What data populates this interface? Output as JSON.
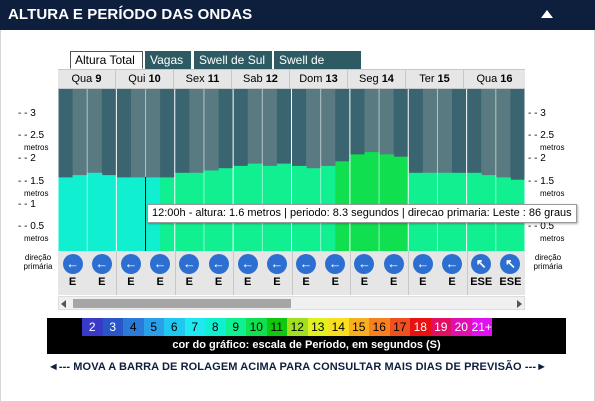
{
  "header": {
    "title": "ALTURA E PERÍODO DAS ONDAS"
  },
  "tabs": [
    {
      "label": "Altura Total",
      "active": true
    },
    {
      "label": "Vagas",
      "active": false
    },
    {
      "label": "Swell de Sul",
      "active": false
    },
    {
      "label": "Swell de Norte",
      "active": false
    }
  ],
  "days": [
    {
      "name": "Qua",
      "num": "9"
    },
    {
      "name": "Qui",
      "num": "10"
    },
    {
      "name": "Sex",
      "num": "11"
    },
    {
      "name": "Sab",
      "num": "12"
    },
    {
      "name": "Dom",
      "num": "13"
    },
    {
      "name": "Seg",
      "num": "14"
    },
    {
      "name": "Ter",
      "num": "15"
    },
    {
      "name": "Qua",
      "num": "16"
    }
  ],
  "axis": {
    "unit": "metros",
    "ticks": [
      "3",
      "2.5",
      "2",
      "1.5",
      "1",
      "0.5"
    ]
  },
  "chart_data": {
    "type": "bar",
    "ylabel": "metros",
    "ylim": [
      0,
      3.5
    ],
    "x": [
      "Qua 9 00h",
      "Qua 9 06h",
      "Qua 9 12h",
      "Qua 9 18h",
      "Qui 10 00h",
      "Qui 10 06h",
      "Qui 10 12h",
      "Qui 10 18h",
      "Sex 11 00h",
      "Sex 11 06h",
      "Sex 11 12h",
      "Sex 11 18h",
      "Sab 12 00h",
      "Sab 12 06h",
      "Sab 12 12h",
      "Sab 12 18h",
      "Dom 13 00h",
      "Dom 13 06h",
      "Dom 13 12h",
      "Dom 13 18h",
      "Seg 14 00h",
      "Seg 14 06h",
      "Seg 14 12h",
      "Seg 14 18h",
      "Ter 15 00h",
      "Ter 15 06h",
      "Ter 15 12h",
      "Ter 15 18h",
      "Qua 16 00h",
      "Qua 16 06h",
      "Qua 16 12h",
      "Qua 16 18h"
    ],
    "values": [
      1.6,
      1.65,
      1.7,
      1.65,
      1.6,
      1.6,
      1.6,
      1.6,
      1.7,
      1.7,
      1.75,
      1.8,
      1.85,
      1.9,
      1.85,
      1.9,
      1.85,
      1.8,
      1.85,
      1.95,
      2.1,
      2.15,
      2.1,
      2.05,
      1.7,
      1.7,
      1.7,
      1.7,
      1.7,
      1.65,
      1.6,
      1.55
    ],
    "periods": [
      8,
      8,
      8.3,
      8,
      7.5,
      7.5,
      8.3,
      8.5,
      9,
      9,
      9,
      9,
      9,
      9,
      9,
      9,
      9,
      9,
      9,
      9.5,
      9.5,
      9.5,
      9.5,
      9.5,
      9,
      9,
      9,
      9,
      9,
      9,
      9,
      9
    ]
  },
  "tooltip": {
    "text": "12:00h - altura: 1.6 metros | periodo: 8.3 segundos | direcao primaria: Leste : 86 graus"
  },
  "direction": {
    "label_line1": "direção",
    "label_line2": "primária",
    "items": [
      "E",
      "E",
      "E",
      "E",
      "E",
      "E",
      "E",
      "E",
      "E",
      "E",
      "E",
      "E",
      "E",
      "E",
      "ESE",
      "ESE"
    ]
  },
  "legend": {
    "caption": "cor do gráfico: escala de Período, em segundos (S)",
    "cells": [
      {
        "label": "2",
        "bg": "#3a3ac8",
        "fg": "#ffffff"
      },
      {
        "label": "3",
        "bg": "#2a55c8",
        "fg": "#ffffff"
      },
      {
        "label": "4",
        "bg": "#2a7ad8",
        "fg": "#000000"
      },
      {
        "label": "5",
        "bg": "#2aa0e8",
        "fg": "#000000"
      },
      {
        "label": "6",
        "bg": "#20c8f0",
        "fg": "#000000"
      },
      {
        "label": "7",
        "bg": "#20e8f0",
        "fg": "#000000"
      },
      {
        "label": "8",
        "bg": "#10f0d0",
        "fg": "#000000"
      },
      {
        "label": "9",
        "bg": "#10f090",
        "fg": "#000000"
      },
      {
        "label": "10",
        "bg": "#10e050",
        "fg": "#000000"
      },
      {
        "label": "11",
        "bg": "#10c810",
        "fg": "#000000"
      },
      {
        "label": "12",
        "bg": "#a0e020",
        "fg": "#000000"
      },
      {
        "label": "13",
        "bg": "#e0f020",
        "fg": "#000000"
      },
      {
        "label": "14",
        "bg": "#f8e020",
        "fg": "#000000"
      },
      {
        "label": "15",
        "bg": "#f8b020",
        "fg": "#000000"
      },
      {
        "label": "16",
        "bg": "#f88020",
        "fg": "#000000"
      },
      {
        "label": "17",
        "bg": "#f05020",
        "fg": "#000000"
      },
      {
        "label": "18",
        "bg": "#e81010",
        "fg": "#ffffff"
      },
      {
        "label": "19",
        "bg": "#e01060",
        "fg": "#ffffff"
      },
      {
        "label": "20",
        "bg": "#e010b0",
        "fg": "#ffffff"
      },
      {
        "label": "21+",
        "bg": "#e010f0",
        "fg": "#ffffff"
      }
    ]
  },
  "scroll_hint": "◄--- MOVA A BARRA DE ROLAGEM ACIMA PARA CONSULTAR MAIS DIAS DE PREVISÃO ---►",
  "colors": {
    "header_bg": "#0e1f3e",
    "chart_bg": "#3a6470",
    "chart_bg_band": "#5a7a82",
    "direction_circle": "#2c6fd0"
  }
}
